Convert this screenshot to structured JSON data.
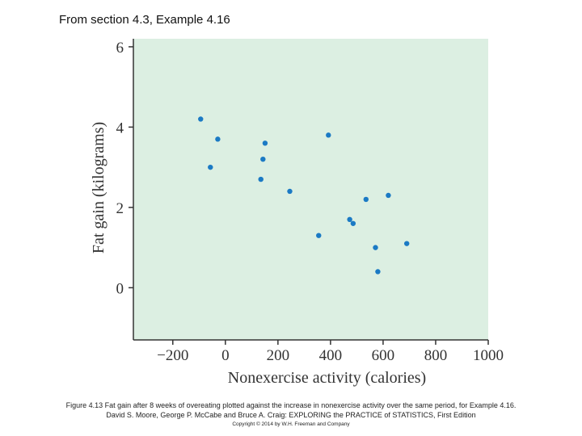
{
  "slide": {
    "title": "From section 4.3, Example 4.16"
  },
  "caption": {
    "line1": "Figure 4.13 Fat gain after 8 weeks of overeating plotted against the increase in nonexercise activity over the same period, for Example 4.16.",
    "line2": "David S. Moore, George P. McCabe and Bruce A. Craig: EXPLORING the PRACTICE of STATISTICS, First Edition",
    "line3": "Copyright © 2014 by W.H. Freeman and Company"
  },
  "colors": {
    "plot_background": "#dcefe2",
    "point": "#1b7ac4",
    "axis": "#333333",
    "text": "#333333"
  },
  "chart_data": {
    "type": "scatter",
    "xlabel": "Nonexercise activity (calories)",
    "ylabel": "Fat gain (kilograms)",
    "xlim": [
      -350,
      1000
    ],
    "ylim": [
      -1.3,
      6.2
    ],
    "xticks": [
      -200,
      0,
      200,
      400,
      600,
      800,
      1000
    ],
    "xtick_labels": [
      "−200",
      "0",
      "200",
      "400",
      "600",
      "800",
      "1000"
    ],
    "yticks": [
      0,
      2,
      4,
      6
    ],
    "ytick_labels": [
      "0",
      "2",
      "4",
      "6"
    ],
    "grid": false,
    "points": [
      {
        "x": -94,
        "y": 4.2
      },
      {
        "x": -57,
        "y": 3.0
      },
      {
        "x": -29,
        "y": 3.7
      },
      {
        "x": 135,
        "y": 2.7
      },
      {
        "x": 143,
        "y": 3.2
      },
      {
        "x": 151,
        "y": 3.6
      },
      {
        "x": 245,
        "y": 2.4
      },
      {
        "x": 355,
        "y": 1.3
      },
      {
        "x": 392,
        "y": 3.8
      },
      {
        "x": 473,
        "y": 1.7
      },
      {
        "x": 486,
        "y": 1.6
      },
      {
        "x": 535,
        "y": 2.2
      },
      {
        "x": 571,
        "y": 1.0
      },
      {
        "x": 580,
        "y": 0.4
      },
      {
        "x": 620,
        "y": 2.3
      },
      {
        "x": 690,
        "y": 1.1
      }
    ]
  }
}
